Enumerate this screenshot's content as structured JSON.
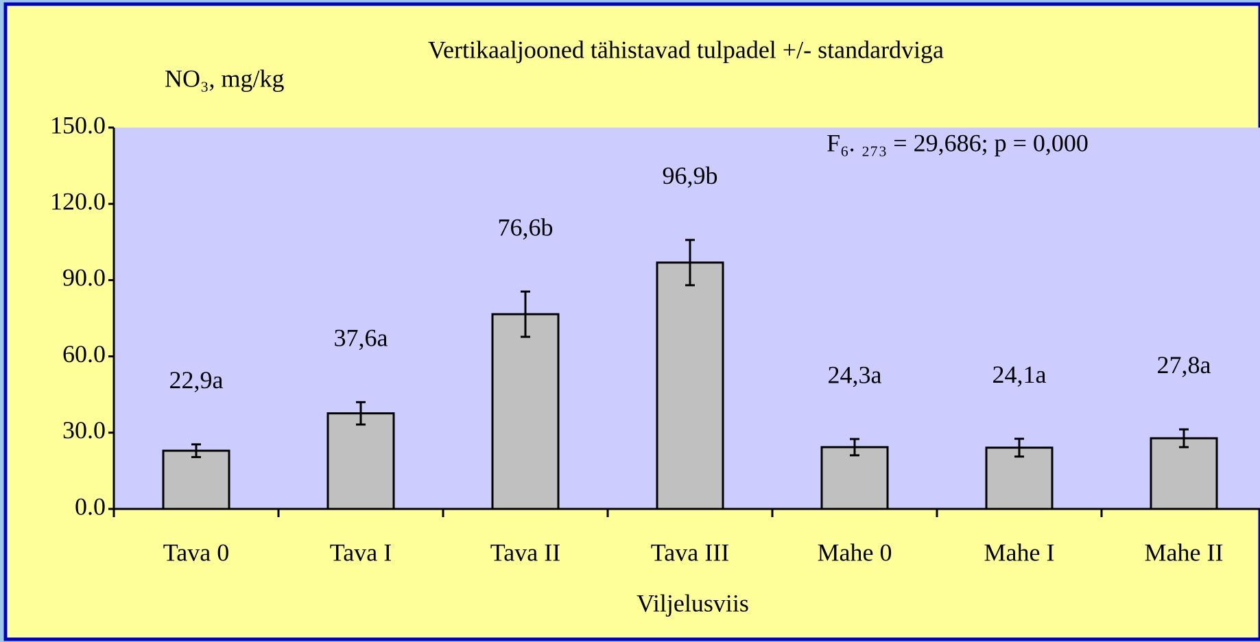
{
  "chart_data": {
    "type": "bar",
    "subtitle": "Vertikaaljooned tähistavad tulpadel +/- standardviga",
    "y_label": "NO₃, mg/kg",
    "x_label": "Viljelusviis",
    "annotation": "F₆. ₂₇₃ = 29,686; p = 0,000",
    "categories": [
      "Tava 0",
      "Tava I",
      "Tava II",
      "Tava III",
      "Mahe 0",
      "Mahe I",
      "Mahe II"
    ],
    "values": [
      22.9,
      37.6,
      76.6,
      96.9,
      24.3,
      24.1,
      27.8
    ],
    "value_labels": [
      "22,9a",
      "37,6a",
      "76,6b",
      "96,9b",
      "24,3a",
      "24,1a",
      "27,8a"
    ],
    "errors": [
      2.5,
      4.4,
      8.9,
      8.9,
      3.2,
      3.5,
      3.5
    ],
    "color": "#c0c0c0",
    "ylim": [
      0,
      150
    ],
    "yticks": [
      {
        "value": 0,
        "label": "0.0"
      },
      {
        "value": 30,
        "label": "30.0"
      },
      {
        "value": 60,
        "label": "60.0"
      },
      {
        "value": 90,
        "label": "90.0"
      },
      {
        "value": 120,
        "label": "120.0"
      },
      {
        "value": 150,
        "label": "150.0"
      }
    ],
    "grid": false
  }
}
